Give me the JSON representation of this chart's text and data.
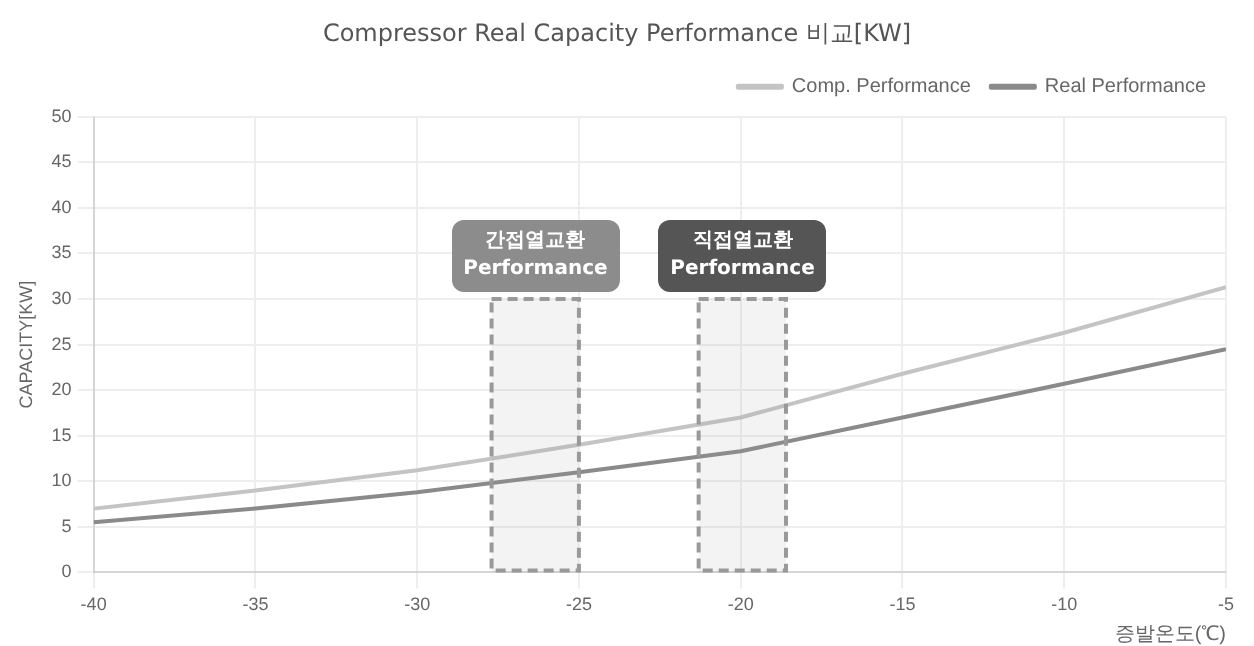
{
  "chart_data": {
    "type": "line",
    "title": "Compressor Real Capacity Performance 비교[KW]",
    "xlabel": "증발온도(℃)",
    "ylabel": "CAPACITY[KW]",
    "x": [
      -40,
      -35,
      -30,
      -25,
      -20,
      -15,
      -10,
      -5
    ],
    "series": [
      {
        "name": "Comp. Performance",
        "color": "#c4c4c4",
        "values": [
          7,
          9,
          11.2,
          14,
          17,
          21.8,
          26.3,
          31.3
        ]
      },
      {
        "name": "Real Performance",
        "color": "#8a8a8a",
        "values": [
          5.5,
          7,
          8.8,
          11,
          13.3,
          17,
          20.7,
          24.5
        ]
      }
    ],
    "xlim": [
      -40,
      -5
    ],
    "xticks": [
      -40,
      -35,
      -30,
      -25,
      -20,
      -15,
      -10,
      -5
    ],
    "ylim": [
      0,
      50
    ],
    "yticks": [
      0,
      5,
      10,
      15,
      20,
      25,
      30,
      35,
      40,
      45,
      50
    ],
    "bands": [
      {
        "axis": "x",
        "from": -27.7,
        "to": -25,
        "label": "간접열교환 Performance",
        "color": "#999999"
      },
      {
        "axis": "x",
        "from": -21.3,
        "to": -18.6,
        "label": "직접열교환 Performance",
        "color": "#999999"
      }
    ],
    "grid": true,
    "legend": "top right",
    "marker": "none",
    "line_style": "solid"
  }
}
